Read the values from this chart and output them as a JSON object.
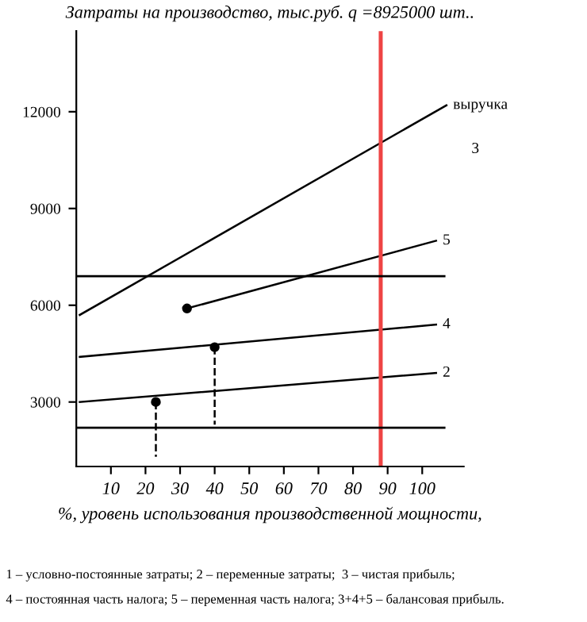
{
  "chart_data": {
    "type": "line",
    "title": "Затраты на производство, тыс.руб. q =8925000 шт..",
    "xlabel": "%, уровень использования производственной мощности,",
    "x": [
      1,
      107
    ],
    "series": [
      {
        "name": "выручка",
        "color": "#000000",
        "values": [
          5700,
          12200
        ]
      },
      {
        "name": "5",
        "color": "#000000",
        "x": [
          32,
          104
        ],
        "values": [
          5900,
          8000
        ]
      },
      {
        "name": "4",
        "color": "#000000",
        "values": [
          4400,
          5400
        ],
        "x": [
          1,
          104
        ]
      },
      {
        "name": "2",
        "color": "#000000",
        "values": [
          3000,
          3900
        ],
        "x": [
          1,
          104
        ]
      },
      {
        "type": "scatter",
        "marker": "circle",
        "color": "#000000",
        "x": [
          32,
          23,
          40
        ],
        "values": [
          5900,
          3000,
          4700
        ]
      },
      {
        "color": "#000000",
        "x": [
          23,
          23
        ],
        "values": [
          3000,
          1300
        ],
        "line_style": "dashed"
      },
      {
        "color": "#000000",
        "x": [
          40,
          40
        ],
        "values": [
          4700,
          2300
        ],
        "line_style": "dashed"
      }
    ],
    "xlim": [
      0,
      112
    ],
    "ylim": [
      1000,
      14500
    ],
    "xticks": [
      10,
      20,
      30,
      40,
      50,
      60,
      70,
      80,
      90,
      100
    ],
    "yticks": [
      3000,
      6000,
      9000,
      12000
    ],
    "ref_lines": [
      {
        "axis": "x",
        "value": 88,
        "color": "#ee4444"
      },
      {
        "axis": "y",
        "value": 6900,
        "color": "#000000"
      },
      {
        "axis": "y",
        "value": 2200,
        "color": "#000000"
      }
    ],
    "grid": false,
    "marker": "none",
    "line_style": "solid",
    "annotations": [
      "3",
      "1 – условно-постоянные затраты; 2 – переменные затраты;  3 – чистая прибыль;",
      "4 – постоянная часть налога; 5 – переменная часть налога; 3+4+5 – балансовая прибыль."
    ]
  }
}
